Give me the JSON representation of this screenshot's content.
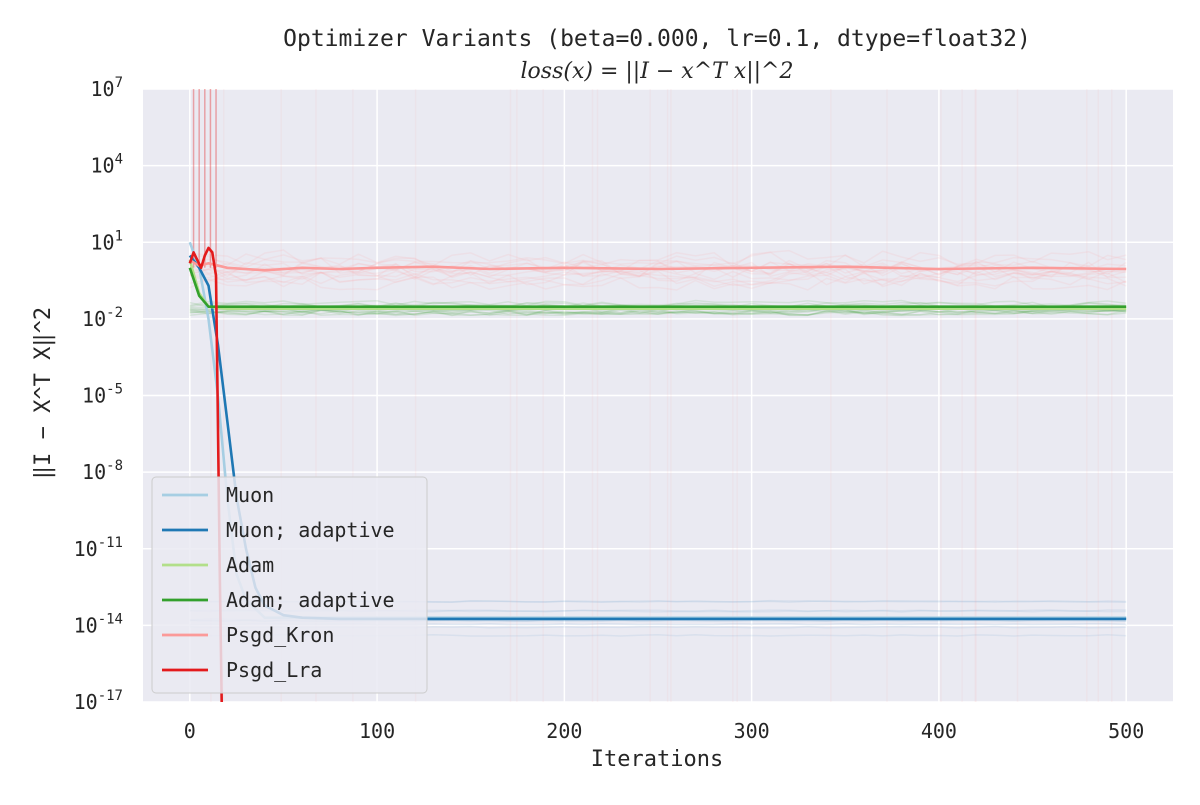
{
  "chart_data": {
    "type": "line",
    "title": "Optimizer Variants (beta=0.000, lr=0.1, dtype=float32)",
    "subtitle": "loss(x) = ||I − x^T x||^2",
    "xlabel": "Iterations",
    "ylabel": "‖I − X^T X‖^2",
    "yscale": "log",
    "xlim": [
      -25,
      525
    ],
    "ylim": [
      1e-17,
      10000000.0
    ],
    "xticks": [
      0,
      100,
      200,
      300,
      400,
      500
    ],
    "yticks_exp": [
      7,
      4,
      1,
      -2,
      -5,
      -8,
      -11,
      -14,
      -17
    ],
    "grid": true,
    "legend_position": "lower-left",
    "series": [
      {
        "name": "Muon",
        "color": "#a6cee3",
        "x": [
          0,
          5,
          10,
          15,
          20,
          25,
          30,
          40,
          50,
          60,
          80,
          100,
          130,
          200,
          300,
          400,
          500
        ],
        "y": [
          10,
          1,
          0.01,
          1e-05,
          1e-09,
          1e-12,
          1e-13,
          2e-14,
          2e-14,
          2e-14,
          2e-14,
          2e-14,
          2e-14,
          2e-14,
          2e-14,
          2e-14,
          2e-14
        ]
      },
      {
        "name": "Muon; adaptive",
        "color": "#1f78b4",
        "x": [
          0,
          5,
          10,
          15,
          20,
          25,
          30,
          35,
          40,
          50,
          60,
          80,
          100,
          130,
          200,
          300,
          400,
          500
        ],
        "y": [
          3,
          1,
          0.2,
          0.001,
          1e-06,
          1e-09,
          1e-11,
          3e-13,
          6e-14,
          2.5e-14,
          2e-14,
          1.8e-14,
          1.8e-14,
          1.8e-14,
          1.8e-14,
          1.8e-14,
          1.8e-14,
          1.8e-14
        ]
      },
      {
        "name": "Adam",
        "color": "#b2df8a",
        "x": [
          0,
          5,
          10,
          20,
          50,
          100,
          200,
          300,
          400,
          500
        ],
        "y": [
          2,
          0.1,
          0.03,
          0.025,
          0.025,
          0.025,
          0.025,
          0.025,
          0.025,
          0.025
        ]
      },
      {
        "name": "Adam; adaptive",
        "color": "#33a02c",
        "x": [
          0,
          5,
          10,
          20,
          50,
          100,
          200,
          300,
          400,
          500
        ],
        "y": [
          1,
          0.08,
          0.03,
          0.03,
          0.03,
          0.03,
          0.03,
          0.03,
          0.03,
          0.03
        ]
      },
      {
        "name": "Psgd_Kron",
        "color": "#fb9a99",
        "x": [
          0,
          5,
          10,
          20,
          40,
          60,
          80,
          100,
          130,
          160,
          200,
          250,
          300,
          350,
          400,
          450,
          500
        ],
        "y": [
          2,
          1.2,
          1.5,
          1.0,
          0.8,
          1.0,
          0.9,
          1.0,
          1.1,
          0.9,
          1.0,
          0.9,
          1.0,
          1.1,
          0.9,
          1.0,
          0.9
        ]
      },
      {
        "name": "Psgd_Lra",
        "color": "#e31a1c",
        "x": [
          0,
          2,
          4,
          6,
          8,
          10,
          12,
          14,
          15,
          16,
          17
        ],
        "y": [
          1.5,
          4,
          2,
          1,
          3,
          6,
          4,
          0.5,
          1e-06,
          1e-12,
          1e-17
        ]
      }
    ]
  }
}
